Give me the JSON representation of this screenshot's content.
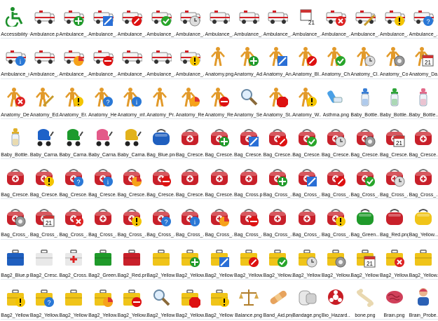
{
  "colors": {
    "ambulance_red": "#d21f26",
    "bag_red": "#c8202a",
    "yellow": "#f0c419",
    "blue": "#1f5fbf",
    "green": "#1f9a2a",
    "anatomy": "#e29a2a"
  },
  "icons": [
    {
      "label": "Accessibility O...",
      "kind": "wheel"
    },
    {
      "label": "Ambulance.png",
      "kind": "amb"
    },
    {
      "label": "Ambulance_...",
      "kind": "amb-add"
    },
    {
      "label": "Ambulance_...",
      "kind": "amb-edit"
    },
    {
      "label": "Ambulance_...",
      "kind": "amb-block"
    },
    {
      "label": "Ambulance_...",
      "kind": "amb-ok"
    },
    {
      "label": "Ambulance_...",
      "kind": "amb-clock"
    },
    {
      "label": "Ambulance_...",
      "kind": "amb"
    },
    {
      "label": "Ambulance_...",
      "kind": "amb"
    },
    {
      "label": "Ambulance_...",
      "kind": "amb"
    },
    {
      "label": "Ambulance_...",
      "kind": "cal"
    },
    {
      "label": "Ambulance_...",
      "kind": "amb-x"
    },
    {
      "label": "Ambulance_...",
      "kind": "amb-edit2"
    },
    {
      "label": "Ambulance_...",
      "kind": "amb-warn"
    },
    {
      "label": "Ambulance_...",
      "kind": "amb-help"
    },
    {
      "label": "Ambulance_i...",
      "kind": "amb-info"
    },
    {
      "label": "Ambulance_...",
      "kind": "amb"
    },
    {
      "label": "Ambulance_...",
      "kind": "amb-pie"
    },
    {
      "label": "Ambulance_...",
      "kind": "amb-minus"
    },
    {
      "label": "Ambulance_...",
      "kind": "amb"
    },
    {
      "label": "Ambulance_...",
      "kind": "amb"
    },
    {
      "label": "Ambulance_...",
      "kind": "amb-warn"
    },
    {
      "label": "Anatomy.png",
      "kind": "anat"
    },
    {
      "label": "Anatomy_Ad...",
      "kind": "anat-add"
    },
    {
      "label": "Anatomy_An...",
      "kind": "anat-edit"
    },
    {
      "label": "Anatomy_Bl...",
      "kind": "anat-block"
    },
    {
      "label": "Anatomy_Ch...",
      "kind": "anat-ok"
    },
    {
      "label": "Anatomy_Cl...",
      "kind": "anat-clock"
    },
    {
      "label": "Anatomy_Co...",
      "kind": "anat-gear"
    },
    {
      "label": "Anatomy_Da...",
      "kind": "anat-cal"
    },
    {
      "label": "Anatomy_De...",
      "kind": "anat-x"
    },
    {
      "label": "Anatomy_Ed...",
      "kind": "anat-edit2"
    },
    {
      "label": "Anatomy_Er...",
      "kind": "anat-warn"
    },
    {
      "label": "Anatomy_He...",
      "kind": "anat-help"
    },
    {
      "label": "Anatomy_inf...",
      "kind": "anat-info"
    },
    {
      "label": "Anatomy_Pr...",
      "kind": "anat"
    },
    {
      "label": "Anatomy_Re...",
      "kind": "anat-pie"
    },
    {
      "label": "Anatomy_Re...",
      "kind": "anat-minus"
    },
    {
      "label": "Anatomy_Se...",
      "kind": "search"
    },
    {
      "label": "Anatomy_St...",
      "kind": "anat-stop"
    },
    {
      "label": "Anatomy_W...",
      "kind": "anat-warn"
    },
    {
      "label": "Asthma.png",
      "kind": "inhaler"
    },
    {
      "label": "Baby_Bottle...",
      "kind": "bottle-blue"
    },
    {
      "label": "Baby_Bottle...",
      "kind": "bottle-green"
    },
    {
      "label": "Baby_Bottle...",
      "kind": "bottle-pink"
    },
    {
      "label": "Baby_Bottle...",
      "kind": "bottle-yellow"
    },
    {
      "label": "Baby_Carria...",
      "kind": "carr-blue"
    },
    {
      "label": "Baby_Carria...",
      "kind": "carr-green"
    },
    {
      "label": "Baby_Carria...",
      "kind": "carr-pink"
    },
    {
      "label": "Baby_Carria...",
      "kind": "carr-yellow"
    },
    {
      "label": "Bag_Blue.png",
      "kind": "bag-blue"
    },
    {
      "label": "Bag_Cresce...",
      "kind": "bag"
    },
    {
      "label": "Bag_Cresce...",
      "kind": "bag-add"
    },
    {
      "label": "Bag_Cresce...",
      "kind": "bag-edit"
    },
    {
      "label": "Bag_Cresce...",
      "kind": "bag-block"
    },
    {
      "label": "Bag_Cresce...",
      "kind": "bag-ok"
    },
    {
      "label": "Bag_Cresce...",
      "kind": "bag-clock"
    },
    {
      "label": "Bag_Cresce...",
      "kind": "bag-gear"
    },
    {
      "label": "Bag_Cresce...",
      "kind": "bag-cal"
    },
    {
      "label": "Bag_Cresce...",
      "kind": "bag"
    },
    {
      "label": "Bag_Cresce...",
      "kind": "bag"
    },
    {
      "label": "Bag_Cresce...",
      "kind": "bag-warn"
    },
    {
      "label": "Bag_Cresce...",
      "kind": "bag-help"
    },
    {
      "label": "Bag_Cresce...",
      "kind": "bag-info"
    },
    {
      "label": "Bag_Cresce...",
      "kind": "bag-pie"
    },
    {
      "label": "Bag_Cresce...",
      "kind": "bag-minus"
    },
    {
      "label": "Bag_Cresce...",
      "kind": "bag"
    },
    {
      "label": "Bag_Cresce...",
      "kind": "bag"
    },
    {
      "label": "Bag_Cross.png",
      "kind": "bag"
    },
    {
      "label": "Bag_Cross_...",
      "kind": "bag-add"
    },
    {
      "label": "Bag_Cross_...",
      "kind": "bag-edit"
    },
    {
      "label": "Bag_Cross_...",
      "kind": "bag-block"
    },
    {
      "label": "Bag_Cross_...",
      "kind": "bag-ok"
    },
    {
      "label": "Bag_Cross_...",
      "kind": "bag-clock"
    },
    {
      "label": "Bag_Cross_...",
      "kind": "bag"
    },
    {
      "label": "Bag_Cross_...",
      "kind": "bag-gear"
    },
    {
      "label": "Bag_Cross_...",
      "kind": "bag-cal"
    },
    {
      "label": "Bag_Cross_...",
      "kind": "bag-x"
    },
    {
      "label": "Bag_Cross_...",
      "kind": "bag"
    },
    {
      "label": "Bag_Cross_...",
      "kind": "bag-warn"
    },
    {
      "label": "Bag_Cross_...",
      "kind": "bag-help"
    },
    {
      "label": "Bag_Cross_...",
      "kind": "bag-info"
    },
    {
      "label": "Bag_Cross_...",
      "kind": "bag-pie"
    },
    {
      "label": "Bag_Cross_...",
      "kind": "bag-minus"
    },
    {
      "label": "Bag_Cross_...",
      "kind": "bag"
    },
    {
      "label": "Bag_Cross_...",
      "kind": "bag"
    },
    {
      "label": "Bag_Cross_...",
      "kind": "bag-warn"
    },
    {
      "label": "Bag_Green...",
      "kind": "bag-green"
    },
    {
      "label": "Bag_Red.png",
      "kind": "bag-red"
    },
    {
      "label": "Bag_Yellow...",
      "kind": "bag-yellow"
    },
    {
      "label": "Bag2_Blue.png",
      "kind": "case-blue"
    },
    {
      "label": "Bag2_Cresc...",
      "kind": "case-white"
    },
    {
      "label": "Bag2_Cross...",
      "kind": "case-white-cross"
    },
    {
      "label": "Bag2_Green...",
      "kind": "case-green"
    },
    {
      "label": "Bag2_Red.png",
      "kind": "case-red"
    },
    {
      "label": "Bag2_Yellow...",
      "kind": "case-yellow"
    },
    {
      "label": "Bag2_Yellow...",
      "kind": "case-yellow-add"
    },
    {
      "label": "Bag2_Yellow...",
      "kind": "case-yellow-edit"
    },
    {
      "label": "Bag2_Yellow...",
      "kind": "case-yellow-block"
    },
    {
      "label": "Bag2_Yellow...",
      "kind": "case-yellow-ok"
    },
    {
      "label": "Bag2_Yellow...",
      "kind": "case-yellow-clock"
    },
    {
      "label": "Bag2_Yellow...",
      "kind": "case-yellow-gear"
    },
    {
      "label": "Bag2_Yellow...",
      "kind": "case-yellow-cal"
    },
    {
      "label": "Bag2_Yellow...",
      "kind": "case-yellow-x"
    },
    {
      "label": "Bag2_Yellow...",
      "kind": "case-yellow"
    },
    {
      "label": "Bag2_Yellow...",
      "kind": "case-yellow-warn"
    },
    {
      "label": "Bag2_Yellow...",
      "kind": "case-yellow-help"
    },
    {
      "label": "Bag2_Yellow...",
      "kind": "case-yellow"
    },
    {
      "label": "Bag2_Yellow...",
      "kind": "case-yellow-pie"
    },
    {
      "label": "Bag2_Yellow...",
      "kind": "case-yellow-minus"
    },
    {
      "label": "Bag2_Yellow...",
      "kind": "search"
    },
    {
      "label": "Bag2_Yellow...",
      "kind": "case-yellow-stop"
    },
    {
      "label": "Bag2_Yellow...",
      "kind": "case-yellow-warn"
    },
    {
      "label": "Balance.png",
      "kind": "balance"
    },
    {
      "label": "Band_Aid.png",
      "kind": "bandaid"
    },
    {
      "label": "Bandage.png",
      "kind": "bandage"
    },
    {
      "label": "Bio_Hazard...",
      "kind": "biohazard"
    },
    {
      "label": "bone.png",
      "kind": "bone"
    },
    {
      "label": "Brain.png",
      "kind": "brain"
    },
    {
      "label": "Brain_Probe...",
      "kind": "probe"
    }
  ]
}
